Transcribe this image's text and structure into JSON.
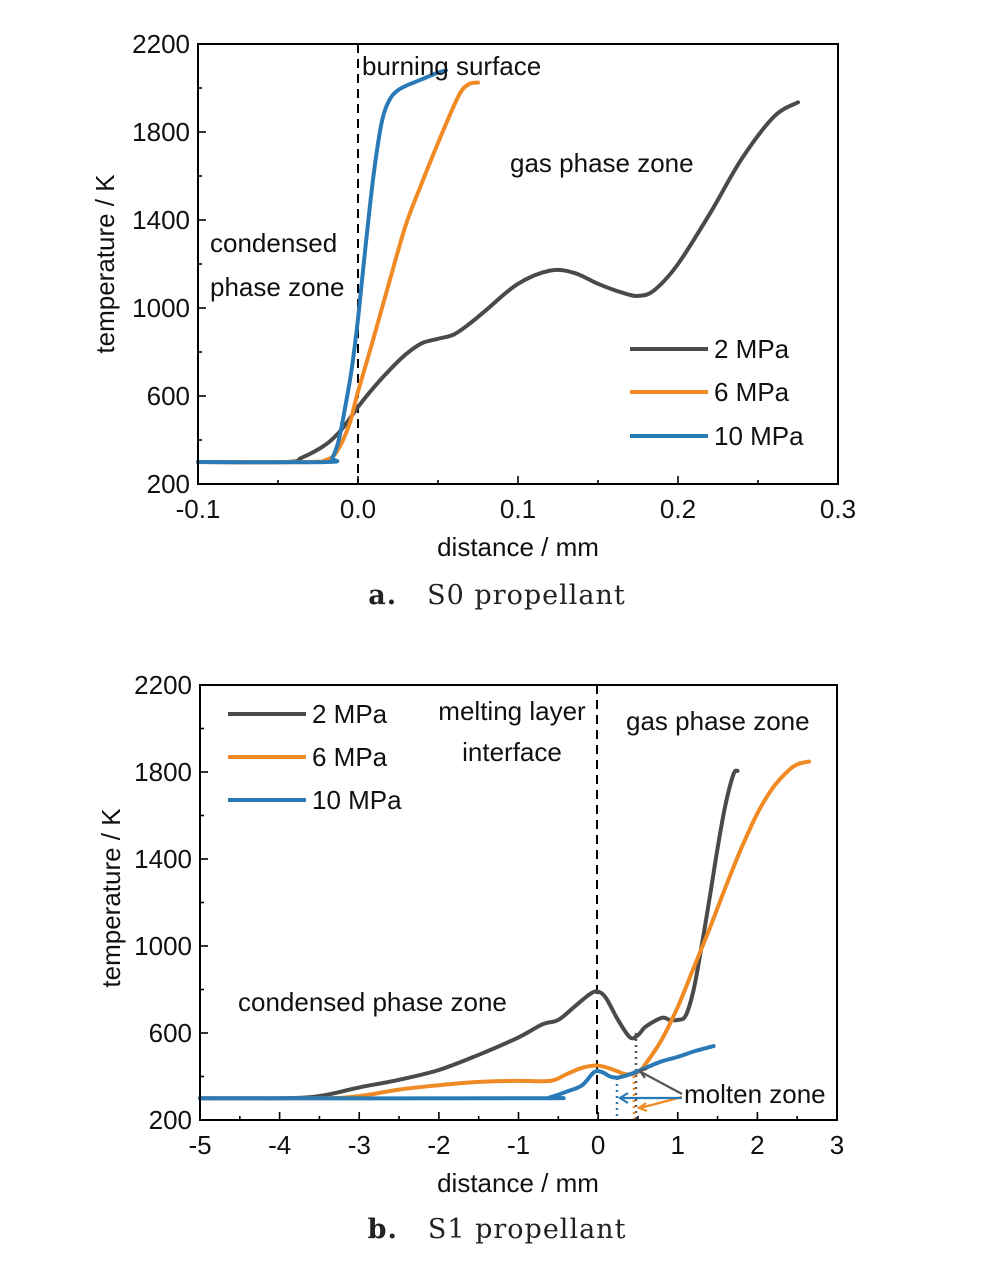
{
  "chart_data": [
    {
      "type": "line",
      "caption_label": "a.",
      "caption_text": "S0 propellant",
      "xlabel": "distance / mm",
      "ylabel": "temperature / K",
      "xlim": [
        -0.1,
        0.3
      ],
      "ylim": [
        200,
        2200
      ],
      "xticks": [
        "-0.1",
        "0.0",
        "0.1",
        "0.2",
        "0.3"
      ],
      "yticks": [
        "200",
        "600",
        "1000",
        "1400",
        "1800",
        "2200"
      ],
      "annotations": [
        "burning surface",
        "condensed",
        "phase zone",
        "gas phase zone"
      ],
      "legend_position": "lower-right",
      "series": [
        {
          "name": "2 MPa",
          "color": "#4a4a4a",
          "x": [
            -0.1,
            -0.045,
            -0.035,
            -0.02,
            -0.01,
            0.0,
            0.01,
            0.02,
            0.03,
            0.04,
            0.05,
            0.06,
            0.07,
            0.08,
            0.1,
            0.12,
            0.135,
            0.15,
            0.165,
            0.175,
            0.185,
            0.2,
            0.22,
            0.24,
            0.26,
            0.275
          ],
          "y": [
            300,
            300,
            320,
            380,
            450,
            550,
            640,
            720,
            790,
            840,
            860,
            880,
            930,
            990,
            1110,
            1170,
            1160,
            1110,
            1070,
            1055,
            1080,
            1200,
            1430,
            1680,
            1870,
            1935
          ]
        },
        {
          "name": "6 MPa",
          "color": "#f08a24",
          "x": [
            -0.1,
            -0.03,
            -0.02,
            -0.015,
            -0.01,
            -0.005,
            0.0,
            0.01,
            0.02,
            0.03,
            0.04,
            0.05,
            0.06,
            0.065,
            0.07,
            0.075
          ],
          "y": [
            300,
            300,
            310,
            330,
            390,
            480,
            620,
            870,
            1130,
            1380,
            1570,
            1750,
            1920,
            1990,
            2020,
            2025
          ]
        },
        {
          "name": "10 MPa",
          "color": "#2a7ab8",
          "x": [
            -0.1,
            -0.02,
            -0.016,
            -0.012,
            -0.008,
            -0.004,
            0.0,
            0.005,
            0.01,
            0.015,
            0.02,
            0.025,
            0.03,
            0.04,
            0.05,
            0.055
          ],
          "y": [
            300,
            300,
            320,
            400,
            550,
            720,
            950,
            1300,
            1620,
            1850,
            1950,
            1990,
            2010,
            2040,
            2070,
            2080
          ]
        }
      ]
    },
    {
      "type": "line",
      "caption_label": "b.",
      "caption_text": "S1 propellant",
      "xlabel": "distance / mm",
      "ylabel": "temperature / K",
      "xlim": [
        -5,
        3
      ],
      "ylim": [
        200,
        2200
      ],
      "xticks": [
        "-5",
        "-4",
        "-3",
        "-2",
        "-1",
        "0",
        "1",
        "2",
        "3"
      ],
      "yticks": [
        "200",
        "600",
        "1000",
        "1400",
        "1800",
        "2200"
      ],
      "annotations": [
        "melting layer",
        "interface",
        "gas phase zone",
        "condensed phase zone",
        "molten zone"
      ],
      "legend_position": "top-left",
      "series": [
        {
          "name": "2 MPa",
          "color": "#4a4a4a",
          "x": [
            -5,
            -4,
            -3.5,
            -3,
            -2.5,
            -2,
            -1.5,
            -1,
            -0.7,
            -0.5,
            -0.3,
            -0.1,
            0.0,
            0.1,
            0.25,
            0.4,
            0.5,
            0.6,
            0.8,
            0.9,
            1.0,
            1.1,
            1.2,
            1.3,
            1.4,
            1.5,
            1.6,
            1.7,
            1.75
          ],
          "y": [
            300,
            300,
            310,
            350,
            385,
            430,
            500,
            580,
            640,
            660,
            720,
            780,
            790,
            760,
            660,
            580,
            590,
            630,
            670,
            660,
            660,
            680,
            800,
            1000,
            1220,
            1450,
            1650,
            1790,
            1805
          ]
        },
        {
          "name": "6 MPa",
          "color": "#f08a24",
          "x": [
            -5,
            -3.5,
            -3,
            -2.5,
            -2,
            -1.5,
            -1,
            -0.6,
            -0.4,
            -0.2,
            0.0,
            0.2,
            0.35,
            0.5,
            0.6,
            0.8,
            1.0,
            1.2,
            1.4,
            1.6,
            1.8,
            2.0,
            2.2,
            2.4,
            2.5,
            2.6,
            2.65
          ],
          "y": [
            300,
            300,
            310,
            340,
            360,
            375,
            380,
            380,
            410,
            440,
            450,
            430,
            410,
            420,
            460,
            570,
            720,
            900,
            1080,
            1270,
            1450,
            1610,
            1730,
            1810,
            1835,
            1845,
            1848
          ]
        },
        {
          "name": "10 MPa",
          "color": "#2a7ab8",
          "x": [
            -5,
            -0.8,
            -0.6,
            -0.4,
            -0.2,
            -0.05,
            0.05,
            0.15,
            0.25,
            0.4,
            0.6,
            0.8,
            1.0,
            1.2,
            1.45
          ],
          "y": [
            300,
            300,
            305,
            330,
            360,
            420,
            420,
            400,
            395,
            410,
            440,
            470,
            490,
            515,
            540
          ]
        }
      ]
    }
  ],
  "legend": {
    "label_2": "2 MPa",
    "label_6": "6 MPa",
    "label_10": "10 MPa"
  }
}
